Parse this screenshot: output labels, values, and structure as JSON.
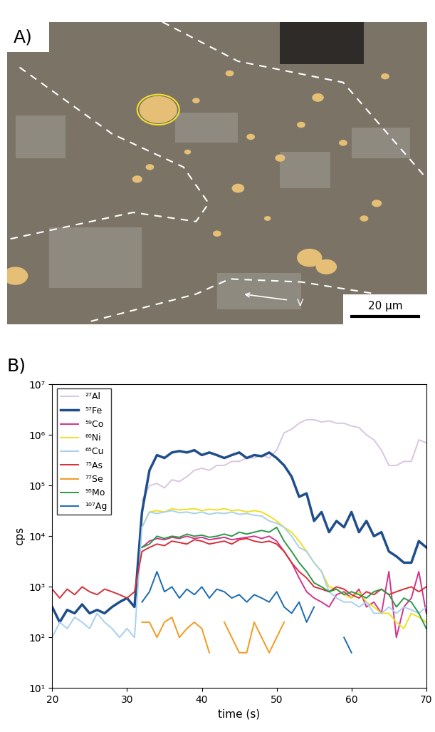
{
  "chart_data": {
    "type": "line",
    "x": [
      20,
      21,
      22,
      23,
      24,
      25,
      26,
      27,
      28,
      29,
      30,
      31,
      32,
      33,
      34,
      35,
      36,
      37,
      38,
      39,
      40,
      41,
      42,
      43,
      44,
      45,
      46,
      47,
      48,
      49,
      50,
      51,
      52,
      53,
      54,
      55,
      56,
      57,
      58,
      59,
      60,
      61,
      62,
      63,
      64,
      65,
      66,
      67,
      68,
      69,
      70
    ],
    "series": [
      {
        "name": "²⁷Al",
        "color": "#d9c6e2",
        "values": [
          null,
          null,
          null,
          null,
          null,
          null,
          null,
          null,
          null,
          null,
          null,
          null,
          50000,
          100000,
          110000,
          90000,
          130000,
          120000,
          150000,
          200000,
          220000,
          200000,
          250000,
          250000,
          300000,
          300000,
          350000,
          350000,
          400000,
          350000,
          500000,
          1100000,
          1300000,
          1700000,
          2000000,
          2000000,
          1800000,
          1900000,
          1700000,
          1700000,
          1500000,
          1400000,
          1000000,
          800000,
          500000,
          250000,
          250000,
          300000,
          300000,
          800000,
          700000
        ]
      },
      {
        "name": "⁵⁷Fe",
        "color": "#1f4e8c",
        "values": [
          400,
          200,
          350,
          300,
          450,
          300,
          350,
          300,
          400,
          500,
          600,
          400,
          30000,
          200000,
          400000,
          350000,
          450000,
          480000,
          450000,
          500000,
          400000,
          450000,
          400000,
          350000,
          400000,
          450000,
          350000,
          400000,
          380000,
          450000,
          350000,
          250000,
          150000,
          60000,
          70000,
          20000,
          30000,
          12000,
          20000,
          15000,
          30000,
          12000,
          20000,
          10000,
          12000,
          5000,
          4000,
          3000,
          3000,
          8000,
          6000
        ]
      },
      {
        "name": "⁵⁹Co",
        "color": "#d4338c",
        "values": [
          null,
          null,
          null,
          null,
          null,
          null,
          null,
          null,
          null,
          null,
          null,
          null,
          6000,
          8000,
          9000,
          8500,
          9500,
          9000,
          10000,
          9000,
          9500,
          8500,
          9000,
          9500,
          8500,
          9000,
          9500,
          10000,
          9000,
          10000,
          8000,
          5000,
          3000,
          1500,
          800,
          600,
          500,
          400,
          700,
          800,
          600,
          900,
          400,
          500,
          300,
          2000,
          100,
          400,
          600,
          2000,
          300
        ]
      },
      {
        "name": "⁶⁰Ni",
        "color": "#f0e020",
        "values": [
          null,
          null,
          null,
          null,
          null,
          null,
          null,
          null,
          null,
          null,
          null,
          null,
          15000,
          30000,
          32000,
          30000,
          35000,
          33000,
          34000,
          35000,
          32000,
          34000,
          33000,
          35000,
          32000,
          33000,
          30000,
          32000,
          30000,
          25000,
          20000,
          15000,
          12000,
          8000,
          5000,
          3000,
          2000,
          1000,
          900,
          700,
          600,
          800,
          500,
          400,
          300,
          300,
          200,
          150,
          300,
          250,
          200
        ]
      },
      {
        "name": "⁶⁵Cu",
        "color": "#a8d0ec",
        "values": [
          100,
          200,
          150,
          250,
          200,
          150,
          300,
          200,
          150,
          100,
          150,
          100,
          15000,
          30000,
          28000,
          30000,
          32000,
          29000,
          30000,
          28000,
          30000,
          27000,
          29000,
          28000,
          30000,
          27000,
          28000,
          26000,
          25000,
          20000,
          18000,
          15000,
          10000,
          6000,
          5000,
          3000,
          2000,
          800,
          600,
          500,
          500,
          400,
          500,
          300,
          300,
          400,
          300,
          400,
          350,
          300,
          400
        ]
      },
      {
        "name": "⁷⁵As",
        "color": "#d62f3a",
        "values": [
          900,
          600,
          900,
          700,
          1000,
          800,
          700,
          900,
          800,
          700,
          600,
          800,
          5000,
          6000,
          7000,
          6500,
          8000,
          7500,
          7000,
          8500,
          8000,
          7000,
          7500,
          8000,
          7000,
          8500,
          9000,
          8000,
          7500,
          8000,
          7000,
          5000,
          3000,
          2000,
          1500,
          1000,
          900,
          800,
          1000,
          900,
          700,
          600,
          800,
          700,
          900,
          700,
          800,
          900,
          1000,
          800,
          1000
        ]
      },
      {
        "name": "⁷⁷Se",
        "color": "#f39a1e",
        "values": [
          null,
          null,
          null,
          null,
          null,
          null,
          null,
          null,
          null,
          null,
          null,
          null,
          200,
          200,
          100,
          200,
          250,
          100,
          150,
          200,
          150,
          50,
          null,
          200,
          100,
          50,
          50,
          200,
          100,
          50,
          100,
          200,
          null,
          null,
          null,
          null,
          null,
          null,
          null,
          null,
          null,
          null,
          null,
          null,
          null,
          null,
          null,
          null,
          null,
          null,
          null
        ]
      },
      {
        "name": "⁹⁵Mo",
        "color": "#2a9a48",
        "values": [
          null,
          null,
          null,
          null,
          null,
          null,
          null,
          null,
          null,
          null,
          null,
          null,
          6000,
          7000,
          10000,
          9000,
          10000,
          9500,
          11000,
          10000,
          10500,
          9500,
          10000,
          11000,
          10000,
          12000,
          11000,
          12000,
          13000,
          12000,
          15000,
          8000,
          5000,
          3000,
          2000,
          1200,
          1000,
          800,
          900,
          700,
          800,
          700,
          600,
          800,
          900,
          700,
          400,
          600,
          500,
          300,
          150
        ]
      },
      {
        "name": "¹⁰⁷Ag",
        "color": "#1a6bb0",
        "values": [
          null,
          null,
          null,
          null,
          null,
          null,
          null,
          null,
          null,
          null,
          null,
          null,
          500,
          800,
          2000,
          800,
          1000,
          600,
          900,
          700,
          1000,
          600,
          900,
          800,
          600,
          700,
          500,
          700,
          600,
          500,
          800,
          400,
          300,
          500,
          200,
          400,
          null,
          null,
          null,
          100,
          50,
          null,
          null,
          null,
          null,
          null,
          null,
          null,
          null,
          null,
          null
        ]
      }
    ],
    "xlabel": "time (s)",
    "ylabel": "cps",
    "xlim": [
      20,
      70
    ],
    "xticks": [
      20,
      30,
      40,
      50,
      60,
      70
    ],
    "ylim": [
      10,
      10000000
    ],
    "yticks": [
      {
        "value": 10,
        "label": "10¹"
      },
      {
        "value": 100,
        "label": "10²"
      },
      {
        "value": 1000,
        "label": "10³"
      },
      {
        "value": 10000,
        "label": "10⁴"
      },
      {
        "value": 100000,
        "label": "10⁵"
      },
      {
        "value": 1000000,
        "label": "10⁶"
      },
      {
        "value": 10000000,
        "label": "10⁷"
      }
    ],
    "log": "y",
    "legend": "upper left"
  },
  "image_panel": {
    "panel_label": "A)",
    "marker_label": "V",
    "scale_bar": "20 μm"
  },
  "chart_panel_label": "B)"
}
